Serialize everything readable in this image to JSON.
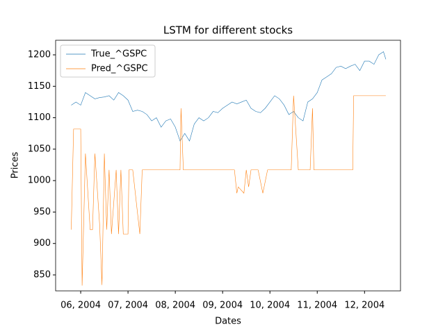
{
  "chart_data": {
    "type": "line",
    "title": "LSTM for different stocks",
    "x_label": "Dates",
    "y_label": "Prices",
    "xlim": [
      5.47,
      12.76
    ],
    "ylim": [
      824.6,
      1223.2
    ],
    "xticks": [
      {
        "value": 6,
        "label": "06, 2004"
      },
      {
        "value": 7,
        "label": "07, 2004"
      },
      {
        "value": 8,
        "label": "08, 2004"
      },
      {
        "value": 9,
        "label": "09, 2004"
      },
      {
        "value": 10,
        "label": "10, 2004"
      },
      {
        "value": 11,
        "label": "11, 2004"
      },
      {
        "value": 12,
        "label": "12, 2004"
      }
    ],
    "yticks": [
      850,
      900,
      950,
      1000,
      1050,
      1100,
      1150,
      1200
    ],
    "grid": false,
    "legend": "upper left",
    "series": [
      {
        "name": "True_^GSPC",
        "color": "#1f77b4",
        "x": [
          5.8,
          5.9,
          6.0,
          6.1,
          6.2,
          6.3,
          6.4,
          6.5,
          6.6,
          6.7,
          6.8,
          6.9,
          7.0,
          7.1,
          7.2,
          7.3,
          7.4,
          7.5,
          7.6,
          7.7,
          7.8,
          7.9,
          8.0,
          8.1,
          8.2,
          8.3,
          8.4,
          8.5,
          8.6,
          8.7,
          8.8,
          8.9,
          9.0,
          9.1,
          9.2,
          9.3,
          9.4,
          9.5,
          9.6,
          9.7,
          9.8,
          9.9,
          10.0,
          10.1,
          10.2,
          10.3,
          10.4,
          10.5,
          10.6,
          10.7,
          10.8,
          10.9,
          11.0,
          11.1,
          11.2,
          11.3,
          11.4,
          11.5,
          11.6,
          11.7,
          11.8,
          11.9,
          12.0,
          12.1,
          12.2,
          12.3,
          12.4,
          12.45
        ],
        "values": [
          1120,
          1125,
          1120,
          1140,
          1135,
          1130,
          1132,
          1133,
          1135,
          1128,
          1140,
          1135,
          1128,
          1110,
          1112,
          1110,
          1105,
          1095,
          1100,
          1085,
          1095,
          1098,
          1085,
          1063,
          1075,
          1063,
          1090,
          1100,
          1095,
          1100,
          1110,
          1108,
          1115,
          1120,
          1125,
          1122,
          1125,
          1128,
          1115,
          1110,
          1108,
          1115,
          1125,
          1135,
          1130,
          1120,
          1105,
          1110,
          1100,
          1095,
          1125,
          1130,
          1140,
          1160,
          1165,
          1170,
          1180,
          1182,
          1178,
          1182,
          1185,
          1175,
          1190,
          1190,
          1185,
          1200,
          1205,
          1193
        ]
      },
      {
        "name": "Pred_^GSPC",
        "color": "#ff7f0e",
        "x": [
          5.8,
          5.85,
          6.0,
          6.03,
          6.1,
          6.2,
          6.25,
          6.3,
          6.4,
          6.45,
          6.5,
          6.55,
          6.6,
          6.65,
          6.75,
          6.8,
          6.85,
          6.9,
          7.0,
          7.02,
          7.1,
          7.25,
          7.3,
          8.1,
          8.12,
          8.17,
          9.25,
          9.3,
          9.33,
          9.45,
          9.5,
          9.55,
          9.6,
          9.75,
          9.85,
          9.95,
          10.45,
          10.5,
          10.6,
          10.85,
          10.9,
          10.93,
          11.75,
          11.77,
          12.45
        ],
        "values": [
          922,
          1082,
          1082,
          833,
          1043,
          922,
          922,
          1043,
          930,
          834,
          1043,
          922,
          1017,
          915,
          1017,
          915,
          1017,
          915,
          915,
          1017,
          1017,
          915,
          1017,
          1017,
          1115,
          1017,
          1017,
          980,
          990,
          980,
          1017,
          990,
          1017,
          1017,
          980,
          1017,
          1017,
          1135,
          1017,
          1017,
          1115,
          1017,
          1017,
          1135,
          1135
        ]
      }
    ]
  }
}
